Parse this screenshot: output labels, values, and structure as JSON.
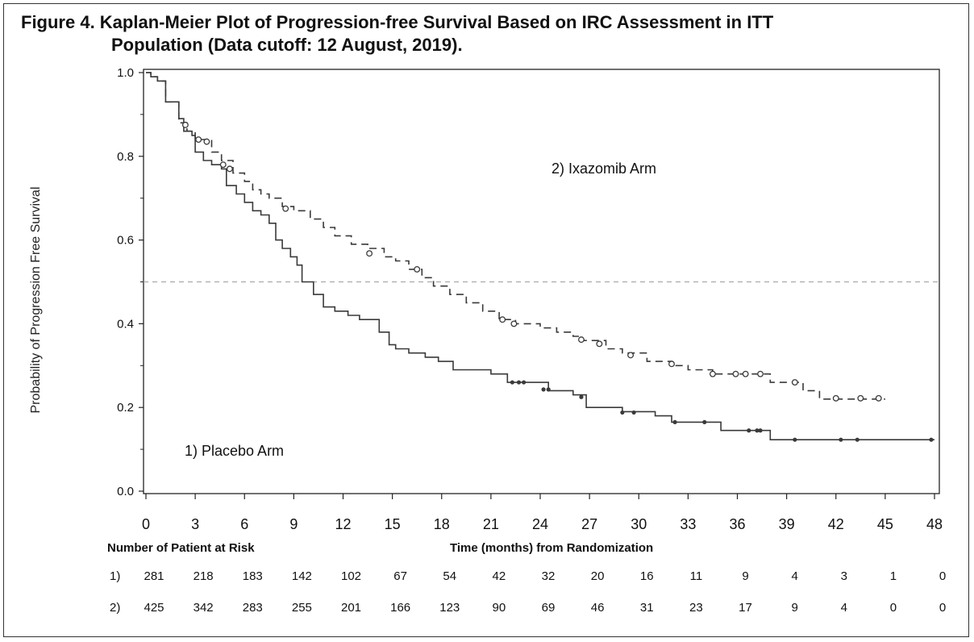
{
  "figure_title_line1": "Figure 4. Kaplan-Meier Plot of Progression-free Survival Based on IRC Assessment in ITT",
  "figure_title_line2": "Population (Data cutoff: 12 August, 2019).",
  "colors": {
    "line": "#3a3a3a",
    "median_line": "#aaaaaa",
    "axis": "#222222"
  },
  "chart_data": {
    "type": "line",
    "title": "Figure 4. Kaplan-Meier Plot of Progression-free Survival Based on IRC Assessment in ITT Population (Data cutoff: 12 August, 2019).",
    "xlabel": "Time (months) from Randomization",
    "ylabel": "Probability of Progression Free Survival",
    "xlim": [
      0,
      48
    ],
    "ylim": [
      0,
      1.0
    ],
    "xticks": [
      "0",
      "3",
      "6",
      "9",
      "12",
      "15",
      "18",
      "21",
      "24",
      "27",
      "30",
      "33",
      "36",
      "39",
      "42",
      "45",
      "48"
    ],
    "yticks": [
      "0.0",
      "0.2",
      "0.4",
      "0.6",
      "0.8",
      "1.0"
    ],
    "reference_line": 0.5,
    "series": [
      {
        "name": "1) Placebo Arm",
        "style": "solid",
        "censor_marker": "filled-dot",
        "x": [
          0,
          0.3,
          0.7,
          1.2,
          2.0,
          2.3,
          2.8,
          3.0,
          3.5,
          4.0,
          4.6,
          4.9,
          5.5,
          6.0,
          6.5,
          7.0,
          7.5,
          7.9,
          8.3,
          8.8,
          9.2,
          9.5,
          10.2,
          10.8,
          11.5,
          12.3,
          13.0,
          14.2,
          14.8,
          15.2,
          16.0,
          17.0,
          17.8,
          18.7,
          21.0,
          22.0,
          24.5,
          26.0,
          26.8,
          29.0,
          31.0,
          32.0,
          35.0,
          37.7,
          38.0,
          48.0
        ],
        "y": [
          1.0,
          0.99,
          0.98,
          0.93,
          0.89,
          0.86,
          0.85,
          0.81,
          0.79,
          0.78,
          0.77,
          0.73,
          0.71,
          0.69,
          0.67,
          0.66,
          0.64,
          0.6,
          0.58,
          0.56,
          0.54,
          0.5,
          0.47,
          0.44,
          0.43,
          0.42,
          0.41,
          0.38,
          0.35,
          0.34,
          0.33,
          0.32,
          0.31,
          0.29,
          0.28,
          0.26,
          0.24,
          0.23,
          0.2,
          0.19,
          0.18,
          0.165,
          0.145,
          0.145,
          0.123,
          0.123
        ],
        "censored": [
          [
            22.3,
            0.26
          ],
          [
            22.7,
            0.26
          ],
          [
            23.0,
            0.26
          ],
          [
            24.2,
            0.243
          ],
          [
            24.5,
            0.243
          ],
          [
            26.5,
            0.225
          ],
          [
            29.0,
            0.188
          ],
          [
            29.7,
            0.188
          ],
          [
            32.2,
            0.165
          ],
          [
            34.0,
            0.165
          ],
          [
            36.7,
            0.145
          ],
          [
            37.2,
            0.145
          ],
          [
            37.4,
            0.145
          ],
          [
            39.5,
            0.123
          ],
          [
            42.3,
            0.123
          ],
          [
            43.3,
            0.123
          ],
          [
            47.8,
            0.123
          ]
        ]
      },
      {
        "name": "2) Ixazomib Arm",
        "style": "dashed",
        "censor_marker": "open-circle",
        "x": [
          0,
          0.3,
          0.7,
          1.2,
          2.0,
          2.5,
          3.0,
          4.0,
          4.6,
          5.3,
          6.0,
          6.5,
          7.0,
          7.5,
          8.3,
          9.0,
          10.0,
          10.8,
          11.5,
          12.5,
          13.5,
          14.5,
          15.2,
          16.0,
          16.8,
          17.5,
          18.5,
          19.5,
          20.5,
          21.5,
          22.5,
          24.0,
          25.0,
          26.0,
          26.5,
          28.0,
          29.0,
          30.5,
          32.0,
          33.0,
          34.5,
          38.0,
          40.0,
          41.0,
          45.0
        ],
        "y": [
          1.0,
          0.99,
          0.98,
          0.93,
          0.88,
          0.86,
          0.84,
          0.81,
          0.79,
          0.76,
          0.74,
          0.72,
          0.71,
          0.7,
          0.68,
          0.67,
          0.65,
          0.63,
          0.61,
          0.59,
          0.58,
          0.56,
          0.55,
          0.53,
          0.51,
          0.49,
          0.47,
          0.45,
          0.43,
          0.41,
          0.4,
          0.39,
          0.38,
          0.37,
          0.36,
          0.34,
          0.33,
          0.31,
          0.3,
          0.29,
          0.28,
          0.26,
          0.24,
          0.22,
          0.22
        ],
        "censored": [
          [
            2.4,
            0.875
          ],
          [
            3.2,
            0.84
          ],
          [
            3.7,
            0.835
          ],
          [
            4.7,
            0.78
          ],
          [
            5.1,
            0.77
          ],
          [
            8.5,
            0.675
          ],
          [
            13.6,
            0.568
          ],
          [
            16.5,
            0.53
          ],
          [
            21.7,
            0.41
          ],
          [
            22.4,
            0.4
          ],
          [
            26.5,
            0.362
          ],
          [
            27.6,
            0.352
          ],
          [
            29.5,
            0.325
          ],
          [
            32.0,
            0.304
          ],
          [
            34.5,
            0.28
          ],
          [
            35.9,
            0.28
          ],
          [
            36.5,
            0.28
          ],
          [
            37.4,
            0.28
          ],
          [
            39.5,
            0.26
          ],
          [
            42.0,
            0.222
          ],
          [
            43.5,
            0.222
          ],
          [
            44.6,
            0.222
          ]
        ]
      }
    ]
  },
  "plot_labels": {
    "placebo": "1) Placebo Arm",
    "ixazomib": "2) Ixazomib Arm"
  },
  "risk_table": {
    "title": "Number of Patient at Risk",
    "x_title": "Time (months) from Randomization",
    "rows": [
      {
        "label": "1)",
        "values": [
          "281",
          "218",
          "183",
          "142",
          "102",
          "67",
          "54",
          "42",
          "32",
          "20",
          "16",
          "11",
          "9",
          "4",
          "3",
          "1",
          "0"
        ]
      },
      {
        "label": "2)",
        "values": [
          "425",
          "342",
          "283",
          "255",
          "201",
          "166",
          "123",
          "90",
          "69",
          "46",
          "31",
          "23",
          "17",
          "9",
          "4",
          "0",
          "0"
        ]
      }
    ]
  }
}
